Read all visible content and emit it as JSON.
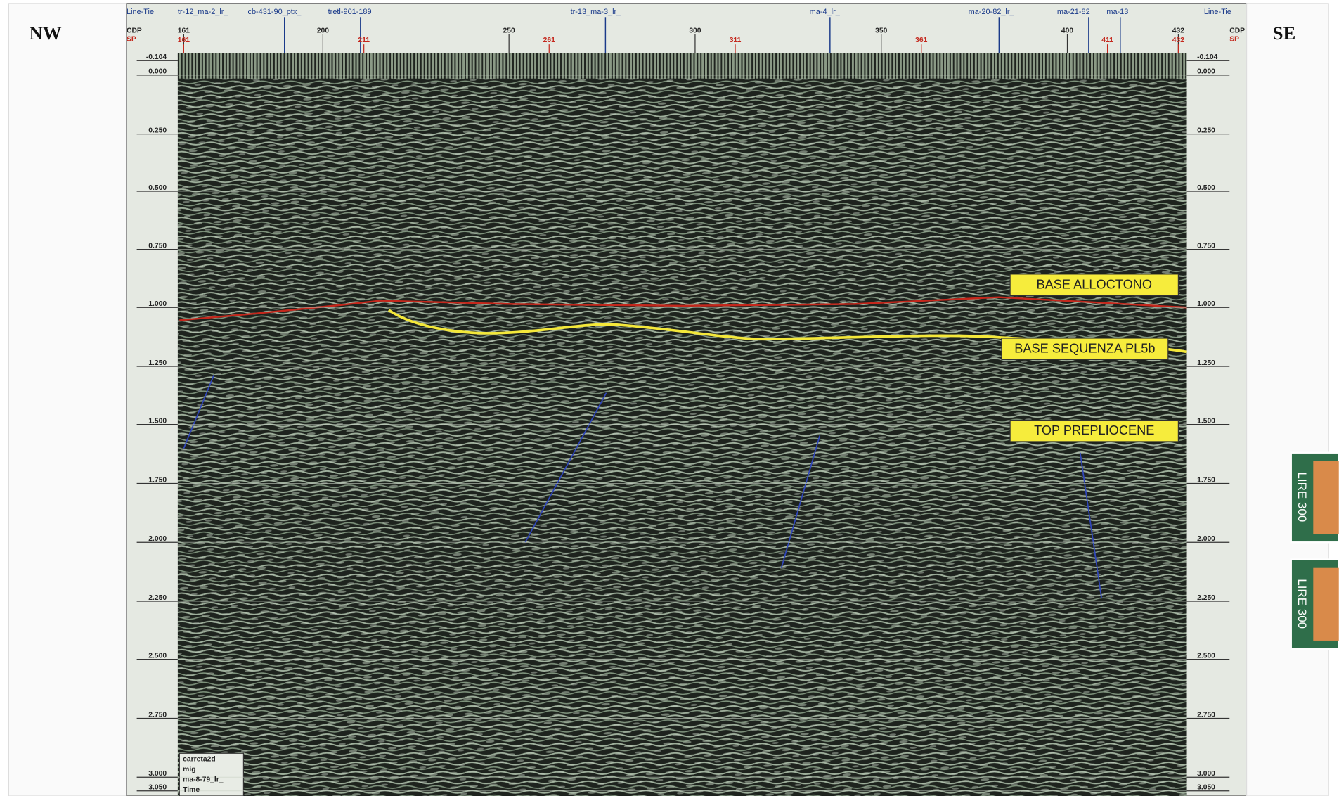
{
  "direction_labels": {
    "left": "NW",
    "right": "SE"
  },
  "header": {
    "line_tie": "Line-Tie",
    "cdp": "CDP",
    "sp": "SP"
  },
  "line_ties": [
    "tr-12_ma-2_lr_",
    "cb-431-90_ptx_",
    "tretl-901-189",
    "tr-13_ma-3_lr_",
    "ma-4_lr_",
    "ma-20-82_lr_",
    "ma-21-82",
    "ma-13"
  ],
  "cdp_ticks": [
    "161",
    "200",
    "250",
    "300",
    "350",
    "400",
    "432"
  ],
  "sp_ticks": [
    "161",
    "211",
    "261",
    "311",
    "361",
    "411",
    "432"
  ],
  "time_ticks": [
    "-0.104",
    "0.000",
    "0.250",
    "0.500",
    "0.750",
    "1.000",
    "1.250",
    "1.500",
    "1.750",
    "2.000",
    "2.250",
    "2.500",
    "2.750",
    "3.000",
    "3.050"
  ],
  "horizons": [
    {
      "label": "BASE ALLOCTONO"
    },
    {
      "label": "BASE SEQUENZA PL5b"
    },
    {
      "label": "TOP PREPLIOCENE"
    }
  ],
  "info_box": [
    "carreta2d",
    "mig",
    "ma-8-79_lr_",
    "Time"
  ],
  "stamps": [
    "LIRE 300",
    "LIRE 300"
  ]
}
